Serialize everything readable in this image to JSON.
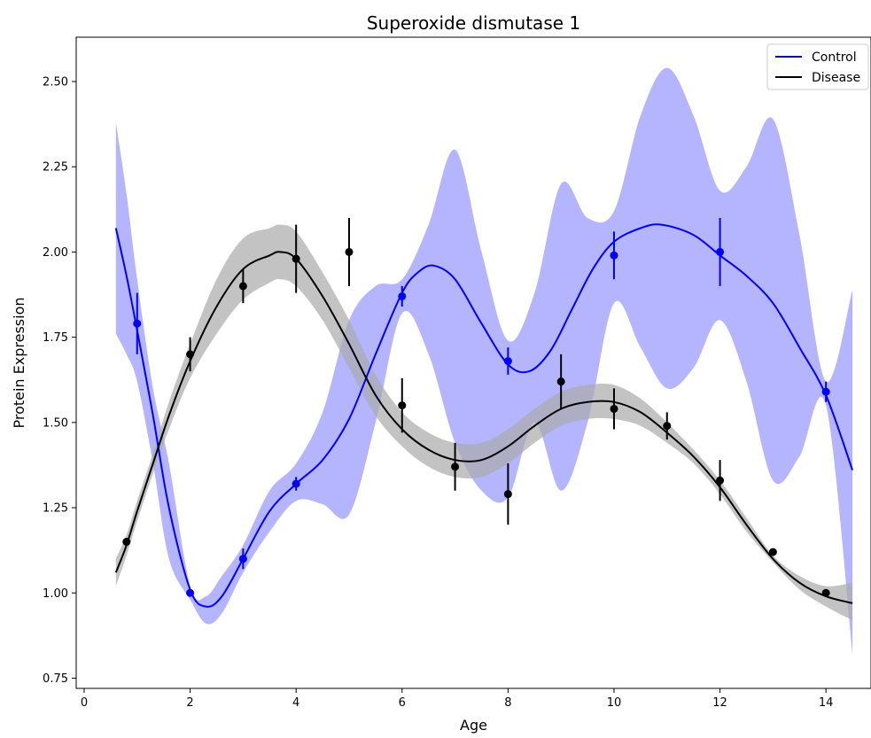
{
  "chart_data": {
    "type": "line",
    "title": "Superoxide dismutase 1",
    "xlabel": "Age",
    "ylabel": "Protein Expression",
    "xlim": [
      -0.15,
      14.85
    ],
    "ylim": [
      0.72,
      2.63
    ],
    "xticks": [
      0,
      2,
      4,
      6,
      8,
      10,
      12,
      14
    ],
    "yticks": [
      0.75,
      1.0,
      1.25,
      1.5,
      1.75,
      2.0,
      2.25,
      2.5
    ],
    "xtick_labels": [
      "0",
      "2",
      "4",
      "6",
      "8",
      "10",
      "12",
      "14"
    ],
    "ytick_labels": [
      "0.75",
      "1.00",
      "1.25",
      "1.50",
      "1.75",
      "2.00",
      "2.25",
      "2.50"
    ],
    "grid": false,
    "legend": {
      "placement": "top-right",
      "entries": [
        "Control",
        "Disease"
      ]
    },
    "series": [
      {
        "name": "Control",
        "color": "#0000ff",
        "band_color": "#b0b0ff",
        "fit": {
          "x": [
            0.6,
            0.8,
            1.0,
            1.3,
            1.6,
            2.0,
            2.3,
            2.6,
            3.0,
            3.5,
            4.0,
            4.5,
            5.0,
            5.5,
            6.0,
            6.3,
            6.6,
            7.0,
            7.5,
            8.0,
            8.4,
            8.8,
            9.2,
            9.6,
            10.0,
            10.5,
            10.9,
            11.5,
            12.0,
            12.5,
            13.0,
            13.5,
            14.0,
            14.5
          ],
          "y": [
            2.07,
            1.93,
            1.77,
            1.52,
            1.25,
            1.01,
            0.96,
            0.99,
            1.1,
            1.24,
            1.32,
            1.39,
            1.51,
            1.7,
            1.88,
            1.94,
            1.96,
            1.92,
            1.79,
            1.67,
            1.65,
            1.71,
            1.83,
            1.95,
            2.03,
            2.07,
            2.08,
            2.05,
            1.99,
            1.93,
            1.85,
            1.72,
            1.58,
            1.36
          ]
        },
        "band": {
          "x": [
            0.6,
            0.8,
            1.0,
            1.3,
            1.6,
            2.0,
            2.3,
            2.6,
            3.0,
            3.5,
            4.0,
            4.5,
            5.0,
            5.5,
            6.0,
            6.5,
            7.0,
            7.5,
            8.0,
            8.5,
            9.0,
            9.5,
            10.0,
            10.5,
            11.0,
            11.5,
            12.0,
            12.5,
            13.0,
            13.5,
            14.0,
            14.5
          ],
          "lower": [
            1.76,
            1.7,
            1.62,
            1.38,
            1.1,
            0.98,
            0.91,
            0.94,
            1.06,
            1.18,
            1.27,
            1.26,
            1.23,
            1.5,
            1.82,
            1.7,
            1.44,
            1.3,
            1.28,
            1.5,
            1.3,
            1.5,
            1.85,
            1.72,
            1.6,
            1.66,
            1.8,
            1.62,
            1.33,
            1.4,
            1.55,
            0.82
          ],
          "upper": [
            2.38,
            2.17,
            1.92,
            1.6,
            1.38,
            1.02,
            0.99,
            1.05,
            1.14,
            1.3,
            1.38,
            1.53,
            1.8,
            1.9,
            1.92,
            2.08,
            2.3,
            2.0,
            1.74,
            1.88,
            2.2,
            2.1,
            2.12,
            2.4,
            2.54,
            2.4,
            2.18,
            2.25,
            2.39,
            2.05,
            1.62,
            1.89
          ]
        },
        "points": {
          "x": [
            1,
            2,
            3,
            4,
            6,
            8,
            10,
            12,
            14
          ],
          "y": [
            1.79,
            1.0,
            1.1,
            1.32,
            1.87,
            1.68,
            1.99,
            2.0,
            1.59
          ],
          "err": [
            0.09,
            0.01,
            0.03,
            0.02,
            0.03,
            0.04,
            0.07,
            0.1,
            0.03
          ]
        }
      },
      {
        "name": "Disease",
        "color": "#000000",
        "band_color": "#a9a9a9",
        "fit": {
          "x": [
            0.6,
            0.8,
            1.0,
            1.3,
            1.6,
            2.0,
            2.5,
            3.0,
            3.5,
            3.7,
            4.0,
            4.5,
            5.0,
            5.5,
            6.0,
            6.5,
            7.0,
            7.5,
            8.0,
            8.5,
            9.0,
            9.5,
            10.0,
            10.5,
            11.0,
            11.5,
            12.0,
            12.5,
            13.0,
            13.5,
            14.0,
            14.5
          ],
          "y": [
            1.06,
            1.14,
            1.24,
            1.38,
            1.52,
            1.68,
            1.84,
            1.95,
            1.99,
            2.0,
            1.98,
            1.87,
            1.73,
            1.58,
            1.48,
            1.42,
            1.39,
            1.39,
            1.43,
            1.49,
            1.54,
            1.56,
            1.56,
            1.53,
            1.47,
            1.4,
            1.31,
            1.2,
            1.1,
            1.03,
            0.99,
            0.97
          ]
        },
        "band": {
          "x": [
            0.6,
            0.8,
            1.0,
            1.3,
            1.6,
            2.0,
            2.5,
            3.0,
            3.5,
            3.7,
            4.0,
            4.5,
            5.0,
            5.5,
            6.0,
            6.5,
            7.0,
            7.5,
            8.0,
            8.5,
            9.0,
            9.5,
            10.0,
            10.5,
            11.0,
            11.5,
            12.0,
            12.5,
            13.0,
            13.5,
            14.0,
            14.5
          ],
          "lower": [
            1.02,
            1.11,
            1.21,
            1.35,
            1.48,
            1.63,
            1.76,
            1.86,
            1.91,
            1.92,
            1.9,
            1.8,
            1.66,
            1.52,
            1.43,
            1.37,
            1.34,
            1.34,
            1.38,
            1.44,
            1.49,
            1.51,
            1.51,
            1.49,
            1.44,
            1.38,
            1.29,
            1.18,
            1.09,
            1.01,
            0.96,
            0.92
          ],
          "upper": [
            1.1,
            1.17,
            1.27,
            1.41,
            1.56,
            1.73,
            1.92,
            2.04,
            2.07,
            2.08,
            2.06,
            1.94,
            1.8,
            1.64,
            1.53,
            1.47,
            1.44,
            1.44,
            1.48,
            1.54,
            1.59,
            1.61,
            1.61,
            1.57,
            1.5,
            1.42,
            1.33,
            1.22,
            1.11,
            1.05,
            1.02,
            1.03
          ]
        },
        "points": {
          "x": [
            0.8,
            2,
            3,
            4,
            5,
            6,
            7,
            8,
            9,
            10,
            11,
            12,
            13,
            14
          ],
          "y": [
            1.15,
            1.7,
            1.9,
            1.98,
            2.0,
            1.55,
            1.37,
            1.29,
            1.62,
            1.54,
            1.49,
            1.33,
            1.12,
            1.0
          ],
          "err": [
            0.01,
            0.05,
            0.05,
            0.1,
            0.1,
            0.08,
            0.07,
            0.09,
            0.08,
            0.06,
            0.04,
            0.06,
            0.01,
            0.01
          ]
        }
      }
    ]
  }
}
